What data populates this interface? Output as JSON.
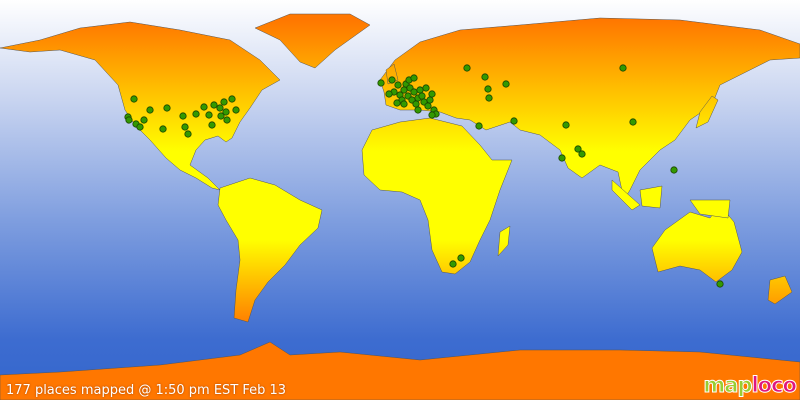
{
  "status": {
    "caption": "177 places mapped @ 1:50 pm EST Feb 13"
  },
  "logo": {
    "text": "maploco",
    "part1": "map",
    "part2": "loco",
    "colors": {
      "part1": "#9acd32",
      "part2": "#e0177f"
    }
  },
  "colors": {
    "land_high_lat": "#ff7700",
    "land_equator": "#ffff00",
    "ocean_top": "#ffffff",
    "ocean_bottom": "#3366cc",
    "marker": "#339900"
  }
}
